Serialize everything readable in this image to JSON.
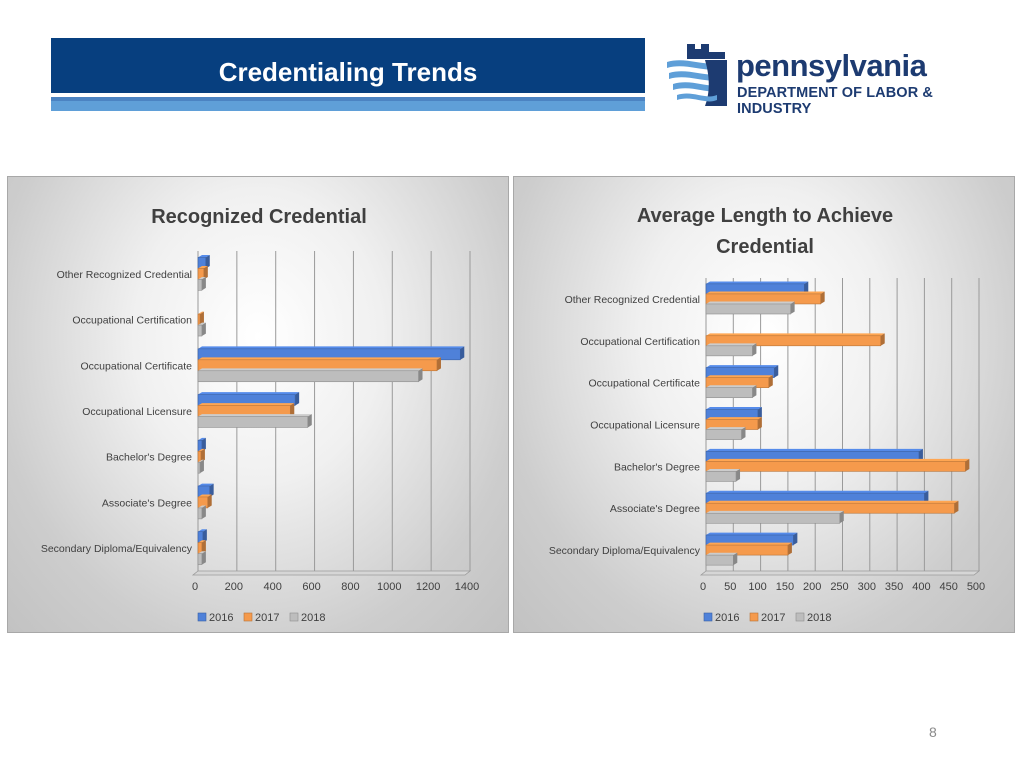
{
  "slide": {
    "title": "Credentialing Trends",
    "page_number": "8"
  },
  "logo": {
    "word": "pennsylvania",
    "subtitle": "DEPARTMENT OF LABOR & INDUSTRY",
    "icon": "keystone-flag-icon"
  },
  "colors": {
    "title_band": "#073f7f",
    "stripe": "#5f9fd8",
    "series_2016": "#4f81d9",
    "series_2017": "#f59a4c",
    "series_2018": "#bdbdbd"
  },
  "chart_data": [
    {
      "type": "bar",
      "orientation": "horizontal",
      "title": "Recognized Credential",
      "categories": [
        "Other Recognized Credential",
        "Occupational Certification",
        "Occupational Certificate",
        "Occupational Licensure",
        "Bachelor's Degree",
        "Associate's Degree",
        "Secondary Diploma/Equivalency"
      ],
      "series": [
        {
          "name": "2016",
          "values": [
            40,
            0,
            1350,
            500,
            20,
            60,
            25
          ]
        },
        {
          "name": "2017",
          "values": [
            30,
            10,
            1230,
            475,
            15,
            50,
            20
          ]
        },
        {
          "name": "2018",
          "values": [
            20,
            20,
            1135,
            565,
            10,
            20,
            20
          ]
        }
      ],
      "xlim": [
        0,
        1400
      ],
      "ticks": [
        "0",
        "200",
        "400",
        "600",
        "800",
        "1000",
        "1200",
        "1400"
      ],
      "grid": true,
      "legend": "bottom"
    },
    {
      "type": "bar",
      "orientation": "horizontal",
      "title": "Average Length to Achieve Credential",
      "title_lines": [
        "Average Length to Achieve",
        "Credential"
      ],
      "categories": [
        "Other Recognized Credential",
        "Occupational Certification",
        "Occupational Certificate",
        "Occupational Licensure",
        "Bachelor's Degree",
        "Associate's Degree",
        "Secondary Diploma/Equivalency"
      ],
      "series": [
        {
          "name": "2016",
          "values": [
            180,
            0,
            125,
            95,
            390,
            400,
            160
          ]
        },
        {
          "name": "2017",
          "values": [
            210,
            320,
            115,
            95,
            475,
            455,
            150
          ]
        },
        {
          "name": "2018",
          "values": [
            155,
            85,
            85,
            65,
            55,
            245,
            50
          ]
        }
      ],
      "xlim": [
        0,
        500
      ],
      "ticks": [
        "0",
        "50",
        "100",
        "150",
        "200",
        "250",
        "300",
        "350",
        "400",
        "450",
        "500"
      ],
      "grid": true,
      "legend": "bottom"
    }
  ]
}
